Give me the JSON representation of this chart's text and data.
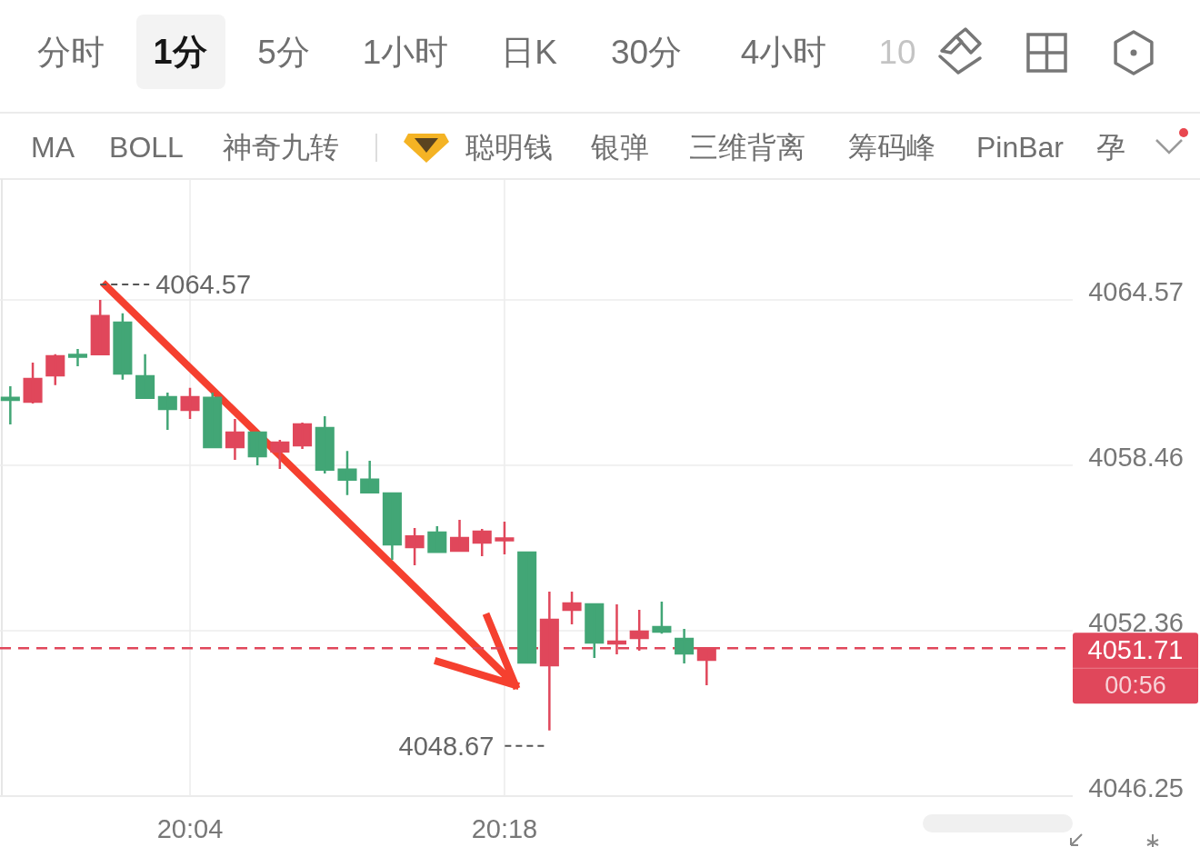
{
  "chart_data": {
    "type": "candlestick",
    "categories": [
      null,
      null,
      null,
      null,
      null,
      null,
      null,
      null,
      "20:04",
      null,
      null,
      null,
      null,
      null,
      null,
      null,
      null,
      null,
      null,
      null,
      null,
      null,
      "20:18",
      null,
      null,
      null,
      null,
      null,
      null,
      null,
      null,
      null,
      null,
      null,
      null,
      null,
      null,
      null,
      null,
      null,
      null,
      null,
      null,
      null,
      null,
      null,
      null,
      null
    ],
    "ohlc": [
      [
        4060.95,
        4061.38,
        4059.97,
        4060.88
      ],
      [
        4060.81,
        4062.25,
        4060.74,
        4061.65
      ],
      [
        4061.78,
        4062.56,
        4061.42,
        4062.49
      ],
      [
        4062.52,
        4062.76,
        4062.12,
        4062.49
      ],
      [
        4062.56,
        4064.57,
        4062.52,
        4063.97
      ],
      [
        4063.73,
        4064.07,
        4061.62,
        4061.85
      ],
      [
        4061.75,
        4062.56,
        4060.91,
        4060.95
      ],
      [
        4060.98,
        4061.15,
        4059.77,
        4060.54
      ],
      [
        4060.51,
        4061.32,
        4060.17,
        4060.98
      ],
      [
        4060.95,
        4061.15,
        4059.1,
        4059.13
      ],
      [
        4059.13,
        4060.17,
        4058.66,
        4059.67
      ],
      [
        4059.67,
        4059.7,
        4058.46,
        4058.8
      ],
      [
        4058.97,
        4059.4,
        4058.33,
        4059.3
      ],
      [
        4059.2,
        4060.04,
        4059.07,
        4059.97
      ],
      [
        4059.84,
        4060.27,
        4058.16,
        4058.3
      ],
      [
        4058.3,
        4058.99,
        4057.36,
        4057.93
      ],
      [
        4057.93,
        4058.63,
        4057.46,
        4057.46
      ],
      [
        4057.42,
        4057.46,
        4054.97,
        4055.54
      ],
      [
        4055.44,
        4056.15,
        4054.77,
        4055.84
      ],
      [
        4055.98,
        4056.21,
        4055.27,
        4055.27
      ],
      [
        4055.31,
        4056.45,
        4055.31,
        4055.78
      ],
      [
        4055.61,
        4056.11,
        4055.11,
        4056.01
      ],
      [
        4055.71,
        4056.38,
        4055.17,
        4055.74
      ],
      [
        4055.24,
        4055.24,
        4051.18,
        4051.18
      ],
      [
        4051.08,
        4053.8,
        4048.67,
        4052.76
      ],
      [
        4053.13,
        4053.8,
        4052.59,
        4053.36
      ],
      [
        4053.33,
        4053.33,
        4051.35,
        4051.92
      ],
      [
        4051.89,
        4053.33,
        4051.48,
        4051.95
      ],
      [
        4052.09,
        4053.13,
        4051.62,
        4052.32
      ],
      [
        4052.49,
        4053.43,
        4052.25,
        4052.32
      ],
      [
        4052.05,
        4052.42,
        4051.15,
        4051.52
      ],
      [
        4051.28,
        4051.71,
        4050.34,
        4051.71
      ],
      null,
      null,
      null,
      null,
      null,
      null,
      null,
      null,
      null,
      null,
      null,
      null,
      null,
      null,
      null,
      null
    ],
    "colors": [
      "#42a676",
      "#e0475b",
      "#e0475b",
      "#42a676",
      "#e0475b",
      "#42a676",
      "#42a676",
      "#42a676",
      "#e0475b",
      "#42a676",
      "#e0475b",
      "#42a676",
      "#e0475b",
      "#e0475b",
      "#42a676",
      "#42a676",
      "#42a676",
      "#42a676",
      "#e0475b",
      "#42a676",
      "#e0475b",
      "#e0475b",
      "#e0475b",
      "#42a676",
      "#e0475b",
      "#e0475b",
      "#42a676",
      "#e0475b",
      "#e0475b",
      "#42a676",
      "#42a676",
      "#e0475b",
      null,
      null,
      null,
      null,
      null,
      null,
      null,
      null,
      null,
      null,
      null,
      null,
      null,
      null,
      null,
      null
    ],
    "ylim": [
      4046.25,
      4069.03
    ],
    "yticks": [
      4046.25,
      4052.36,
      4058.46,
      4064.57
    ],
    "grid": true,
    "ref_lines": [
      {
        "axis": "y",
        "value": 4051.71,
        "label": "4051.71",
        "color": "#e0475b",
        "line_style": "dashed"
      }
    ],
    "annotations": [
      "00:56",
      "4064.57",
      "4048.67",
      "分时",
      "1分",
      "5分",
      "1小时",
      "日K",
      "30分",
      "4小时",
      "10",
      "MA",
      "BOLL",
      "神奇九转",
      "聪明钱",
      "银弹",
      "三维背离",
      "筹码峰",
      "PinBar",
      "孕"
    ]
  }
}
